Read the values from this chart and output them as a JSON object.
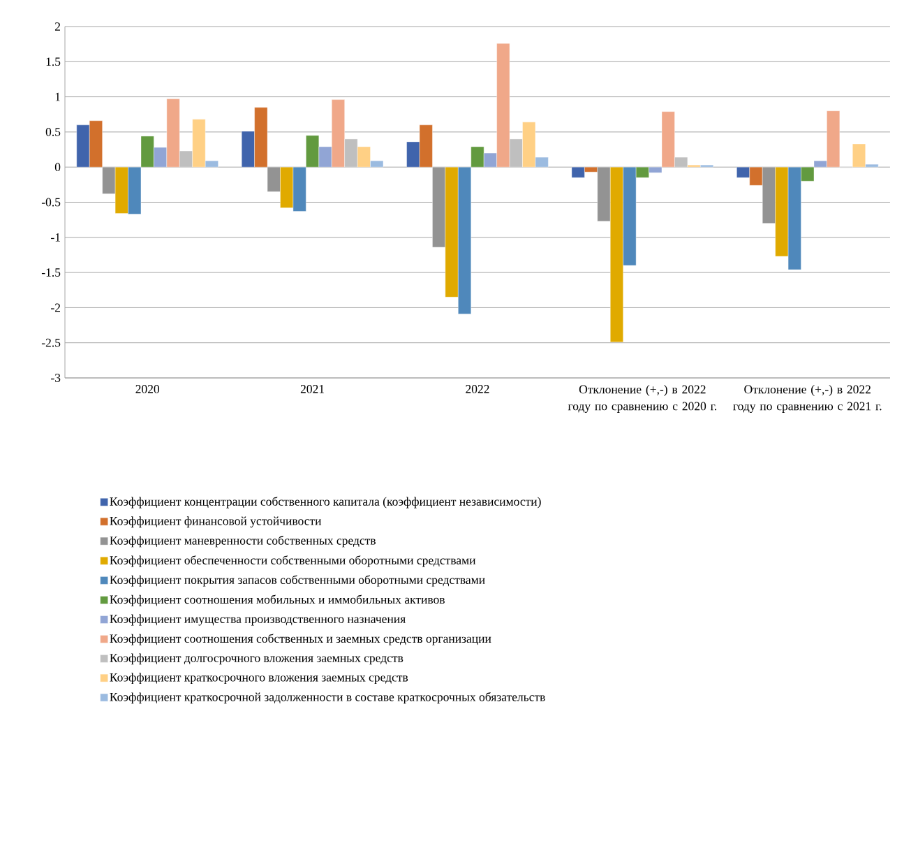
{
  "chart_data": {
    "type": "bar",
    "categories": [
      "2020",
      "2021",
      "2022",
      "Отклонение (+,-) в 2022 году по сравнению с 2020 г.",
      "Отклонение (+,-) в 2022 году по сравнению с 2021 г."
    ],
    "series": [
      {
        "name": "Коэффициент концентрации собственного капитала (коэффициент независимости)",
        "color": "#4064ac",
        "values": [
          0.6,
          0.51,
          0.36,
          -0.15,
          -0.15
        ]
      },
      {
        "name": "Коэффициент финансовой устойчивости",
        "color": "#d2702c",
        "values": [
          0.66,
          0.85,
          0.6,
          -0.07,
          -0.26
        ]
      },
      {
        "name": "Коэффициент маневренности собственных средств",
        "color": "#939393",
        "values": [
          -0.38,
          -0.35,
          -1.14,
          -0.77,
          -0.8
        ]
      },
      {
        "name": "Коэффициент обеспеченности собственными оборотными средствами",
        "color": "#e0aa00",
        "values": [
          -0.66,
          -0.58,
          -1.85,
          -2.49,
          -1.27
        ]
      },
      {
        "name": "Коэффициент покрытия запасов собственными оборотными средствами",
        "color": "#4f88bb",
        "values": [
          -0.67,
          -0.63,
          -2.09,
          -1.4,
          -1.46
        ]
      },
      {
        "name": "Коэффициент соотношения мобильных и иммобильных активов",
        "color": "#629a3f",
        "values": [
          0.44,
          0.45,
          0.29,
          -0.15,
          -0.2
        ]
      },
      {
        "name": "Коэффициент имущества производственного назначения",
        "color": "#91a5d5",
        "values": [
          0.28,
          0.29,
          0.2,
          -0.08,
          0.09
        ]
      },
      {
        "name": "Коэффициент соотношения собственных и заемных средств организации",
        "color": "#f0a889",
        "values": [
          0.97,
          0.96,
          1.76,
          0.79,
          0.8
        ]
      },
      {
        "name": "Коэффициент долгосрочного вложения заемных средств",
        "color": "#bfbfbf",
        "values": [
          0.23,
          0.4,
          0.4,
          0.14,
          -0.01
        ]
      },
      {
        "name": "Коэффициент краткосрочного вложения заемных средств",
        "color": "#ffd085",
        "values": [
          0.68,
          0.29,
          0.64,
          0.03,
          0.33
        ]
      },
      {
        "name": "Коэффициент краткосрочной задолженности в составе краткосрочных обязательств",
        "color": "#9bbbe0",
        "values": [
          0.09,
          0.09,
          0.14,
          0.03,
          0.04
        ]
      }
    ],
    "ylim": [
      -3,
      2
    ],
    "yticks": [
      -3,
      -2.5,
      -2,
      -1.5,
      -1,
      -0.5,
      0,
      0.5,
      1,
      1.5,
      2
    ],
    "grid": "y",
    "legend": "bottom"
  }
}
